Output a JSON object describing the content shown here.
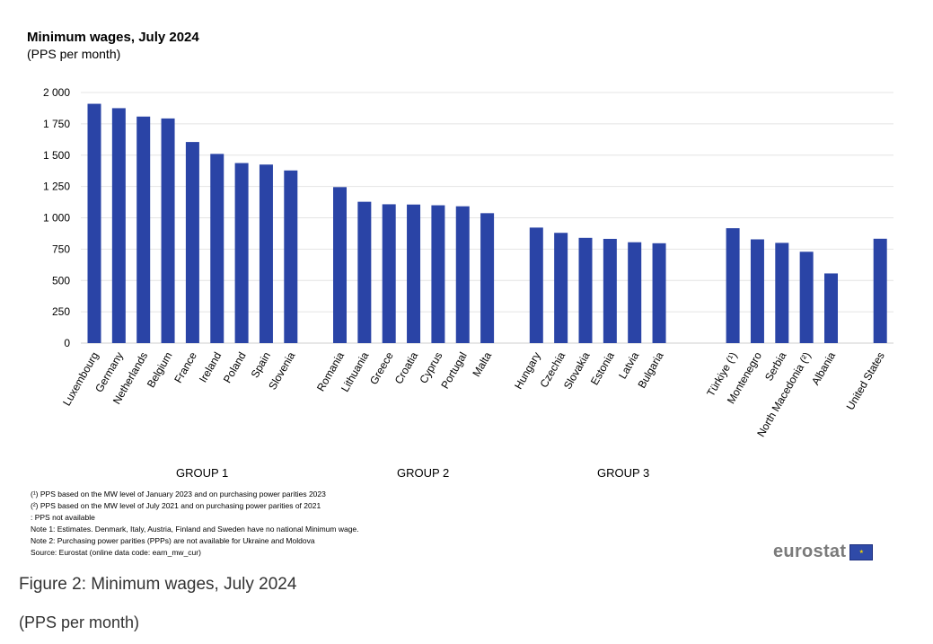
{
  "chart_data": {
    "type": "bar",
    "title": "Minimum wages, July 2024",
    "subtitle": "(PPS per month)",
    "ylim": [
      0,
      2000
    ],
    "yticks": [
      "0",
      "250",
      "500",
      "750",
      "1 000",
      "1 250",
      "1 500",
      "1 750",
      "2 000"
    ],
    "ytick_values": [
      0,
      250,
      500,
      750,
      1000,
      1250,
      1500,
      1750,
      2000
    ],
    "grid": true,
    "bar_color": "#2a44a6",
    "categories": [
      "Luxembourg",
      "Germany",
      "Netherlands",
      "Belgium",
      "France",
      "Ireland",
      "Poland",
      "Spain",
      "Slovenia",
      "Romania",
      "Lithuania",
      "Greece",
      "Croatia",
      "Cyprus",
      "Portugal",
      "Malta",
      "Hungary",
      "Czechia",
      "Slovakia",
      "Estonia",
      "Latvia",
      "Bulgaria",
      "Türkiye (¹)",
      "Montenegro",
      "Serbia",
      "North Macedonia (²)",
      "Albania",
      "United States"
    ],
    "values": [
      1910,
      1875,
      1808,
      1793,
      1605,
      1510,
      1437,
      1425,
      1378,
      1245,
      1128,
      1108,
      1106,
      1100,
      1092,
      1037,
      922,
      880,
      840,
      832,
      805,
      797,
      917,
      828,
      800,
      729,
      556,
      833
    ],
    "slot_index": [
      0,
      1,
      2,
      3,
      4,
      5,
      6,
      7,
      8,
      10,
      11,
      12,
      13,
      14,
      15,
      16,
      18,
      19,
      20,
      21,
      22,
      23,
      26,
      27,
      28,
      29,
      30,
      32
    ],
    "groups": [
      "GROUP 1",
      "GROUP 2",
      "GROUP 3"
    ]
  },
  "notes": [
    "(¹) PPS based on the MW level of January 2023  and on purchasing power parities 2023",
    "(²) PPS based on the MW level of July 2021  and on purchasing power parities of 2021",
    ":  PPS not available",
    "Note 1: Estimates. Denmark, Italy, Austria, Finland and Sweden have no national Minimum wage.",
    "Note 2: Purchasing power parities (PPPs) are not available for Ukraine and Moldova",
    "Source: Eurostat (online data code: earn_mw_cur)"
  ],
  "logo_text": "eurostat",
  "caption": "Figure 2: Minimum wages, July 2024",
  "caption_sub": "(PPS per month)"
}
